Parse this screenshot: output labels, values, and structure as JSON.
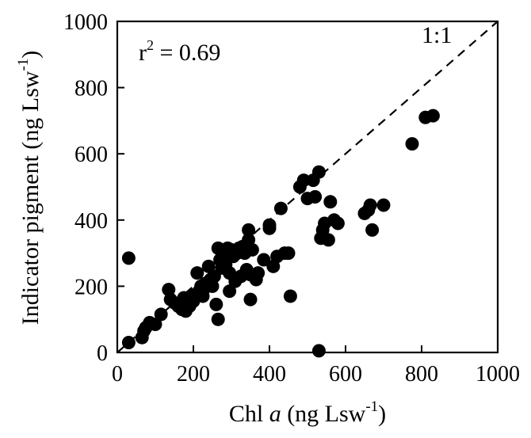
{
  "chart_data": {
    "type": "scatter",
    "xlabel": "Chl a (ng Lsw-1)",
    "xlabel_parts": {
      "pre": "Chl ",
      "italic": "a",
      "post": " (ng Lsw",
      "sup": "-1",
      "close": ")"
    },
    "ylabel": "Indicator pigment (ng Lsw-1)",
    "ylabel_parts": {
      "pre": "Indicator pigment (ng Lsw",
      "sup": "-1",
      "close": ")"
    },
    "xlim": [
      0,
      1000
    ],
    "ylim": [
      0,
      1000
    ],
    "xticks": [
      "0",
      "200",
      "400",
      "600",
      "800",
      "1000"
    ],
    "yticks": [
      "0",
      "200",
      "400",
      "600",
      "800",
      "1000"
    ],
    "grid": false,
    "annotations": {
      "r2_parts": {
        "pre": "r",
        "sup": "2",
        "post": " = 0.69"
      },
      "r2_text": "r2 = 0.69",
      "line_label": "1:1"
    },
    "reference_line": {
      "type": "1:1",
      "style": "dashed",
      "from": [
        0,
        0
      ],
      "to": [
        1000,
        1000
      ]
    },
    "series": [
      {
        "color": "#000000",
        "points": [
          [
            30,
            30
          ],
          [
            30,
            285
          ],
          [
            65,
            45
          ],
          [
            70,
            65
          ],
          [
            75,
            75
          ],
          [
            85,
            90
          ],
          [
            100,
            85
          ],
          [
            115,
            115
          ],
          [
            135,
            190
          ],
          [
            140,
            160
          ],
          [
            150,
            150
          ],
          [
            160,
            140
          ],
          [
            170,
            130
          ],
          [
            175,
            165
          ],
          [
            180,
            125
          ],
          [
            185,
            150
          ],
          [
            190,
            140
          ],
          [
            195,
            170
          ],
          [
            200,
            155
          ],
          [
            205,
            175
          ],
          [
            210,
            240
          ],
          [
            215,
            185
          ],
          [
            220,
            200
          ],
          [
            225,
            170
          ],
          [
            230,
            195
          ],
          [
            235,
            210
          ],
          [
            240,
            260
          ],
          [
            245,
            220
          ],
          [
            250,
            200
          ],
          [
            255,
            230
          ],
          [
            260,
            145
          ],
          [
            265,
            100
          ],
          [
            265,
            315
          ],
          [
            270,
            280
          ],
          [
            275,
            255
          ],
          [
            280,
            300
          ],
          [
            285,
            265
          ],
          [
            290,
            315
          ],
          [
            295,
            240
          ],
          [
            295,
            185
          ],
          [
            300,
            310
          ],
          [
            305,
            290
          ],
          [
            310,
            215
          ],
          [
            315,
            300
          ],
          [
            320,
            315
          ],
          [
            325,
            230
          ],
          [
            330,
            320
          ],
          [
            335,
            300
          ],
          [
            340,
            250
          ],
          [
            345,
            340
          ],
          [
            345,
            370
          ],
          [
            350,
            235
          ],
          [
            350,
            160
          ],
          [
            355,
            310
          ],
          [
            360,
            230
          ],
          [
            365,
            220
          ],
          [
            370,
            240
          ],
          [
            385,
            280
          ],
          [
            400,
            385
          ],
          [
            400,
            375
          ],
          [
            410,
            260
          ],
          [
            420,
            290
          ],
          [
            430,
            435
          ],
          [
            440,
            300
          ],
          [
            450,
            300
          ],
          [
            455,
            170
          ],
          [
            480,
            500
          ],
          [
            490,
            520
          ],
          [
            500,
            465
          ],
          [
            515,
            520
          ],
          [
            520,
            470
          ],
          [
            530,
            545
          ],
          [
            530,
            5
          ],
          [
            535,
            345
          ],
          [
            540,
            370
          ],
          [
            545,
            390
          ],
          [
            555,
            340
          ],
          [
            560,
            455
          ],
          [
            570,
            400
          ],
          [
            580,
            390
          ],
          [
            650,
            420
          ],
          [
            660,
            430
          ],
          [
            665,
            445
          ],
          [
            670,
            370
          ],
          [
            700,
            445
          ],
          [
            775,
            630
          ],
          [
            810,
            710
          ],
          [
            830,
            715
          ]
        ]
      }
    ]
  }
}
